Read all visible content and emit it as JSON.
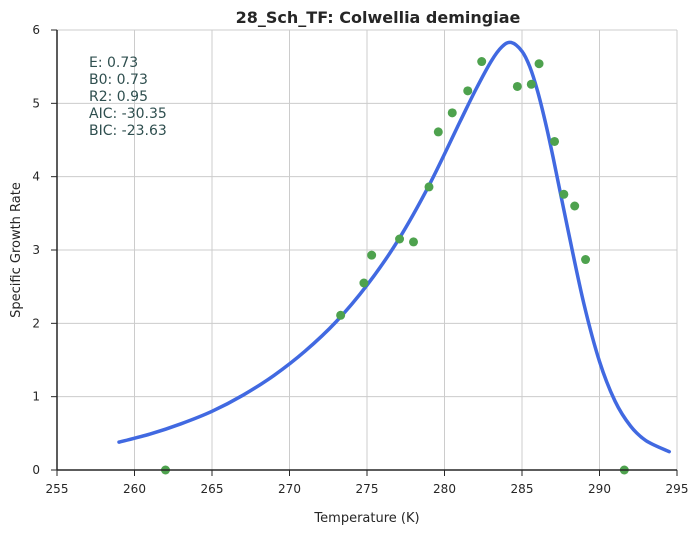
{
  "chart_data": {
    "type": "scatter",
    "title": "28_Sch_TF: Colwellia demingiae",
    "xlabel": "Temperature (K)",
    "ylabel": "Specific Growth Rate",
    "xlim": [
      255,
      295
    ],
    "ylim": [
      0,
      6
    ],
    "xticks": [
      255,
      260,
      265,
      270,
      275,
      280,
      285,
      290,
      295
    ],
    "yticks": [
      0,
      1,
      2,
      3,
      4,
      5,
      6
    ],
    "grid": true,
    "annotations": [
      "E:  0.73",
      "B0:  0.73",
      "R2:  0.95",
      "AIC: -30.35",
      "BIC: -23.63"
    ],
    "series": [
      {
        "kind": "points",
        "color": "#4ea24e",
        "x": [
          262.0,
          273.3,
          274.8,
          275.3,
          277.1,
          278.0,
          279.0,
          279.6,
          280.5,
          281.5,
          282.4,
          284.7,
          285.6,
          286.1,
          287.1,
          287.7,
          288.4,
          289.1,
          291.6
        ],
        "y": [
          0.0,
          2.11,
          2.55,
          2.93,
          3.15,
          3.11,
          3.86,
          4.61,
          4.87,
          5.17,
          5.57,
          5.23,
          5.26,
          5.54,
          4.48,
          3.76,
          3.6,
          2.87,
          0.0
        ]
      },
      {
        "kind": "fit-curve",
        "color": "#4169e1",
        "x": [
          259.0,
          261.0,
          263.0,
          265.0,
          267.0,
          269.0,
          271.0,
          273.0,
          275.0,
          277.0,
          279.0,
          281.0,
          282.0,
          283.0,
          283.7,
          284.3,
          285.0,
          285.5,
          286.0,
          286.5,
          287.0,
          288.0,
          289.0,
          290.0,
          291.0,
          292.0,
          293.0,
          294.5
        ],
        "y": [
          0.38,
          0.49,
          0.63,
          0.8,
          1.02,
          1.29,
          1.62,
          2.02,
          2.52,
          3.13,
          3.88,
          4.75,
          5.18,
          5.57,
          5.77,
          5.83,
          5.71,
          5.5,
          5.17,
          4.75,
          4.27,
          3.24,
          2.26,
          1.48,
          0.94,
          0.6,
          0.4,
          0.25
        ]
      }
    ]
  }
}
